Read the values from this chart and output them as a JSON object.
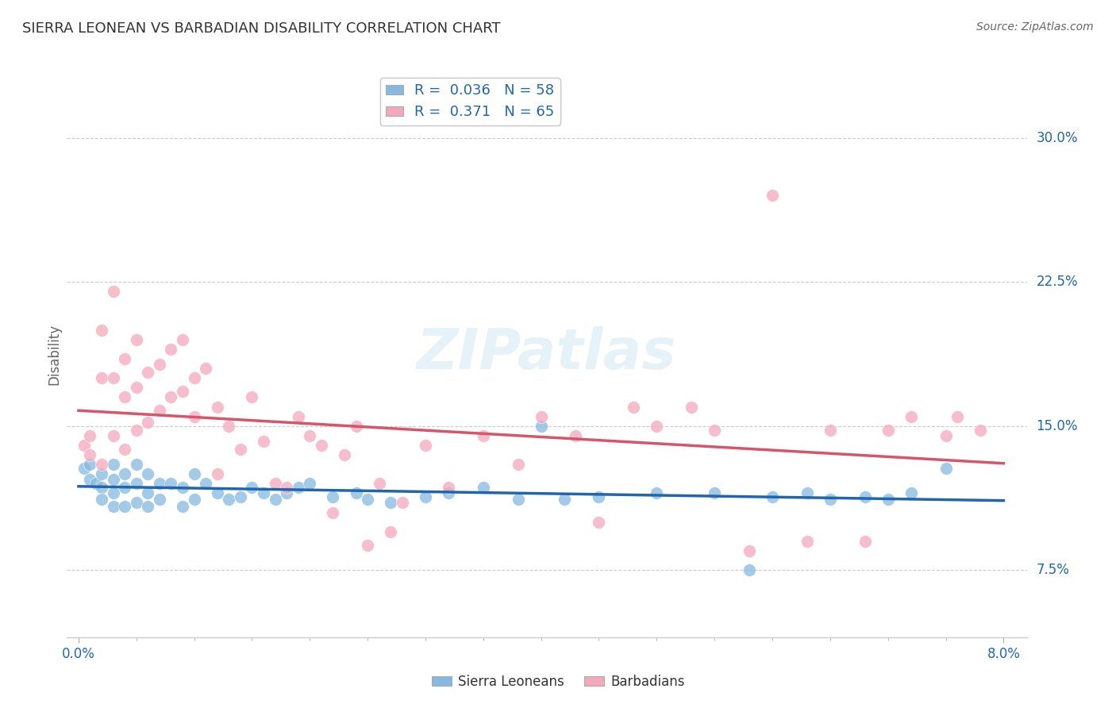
{
  "title": "SIERRA LEONEAN VS BARBADIAN DISABILITY CORRELATION CHART",
  "source": "Source: ZipAtlas.com",
  "ylabel": "Disability",
  "watermark": "ZIPatlas",
  "xlim": [
    0.0,
    0.08
  ],
  "ylim": [
    0.04,
    0.335
  ],
  "y_ticks": [
    0.075,
    0.15,
    0.225,
    0.3
  ],
  "y_tick_labels": [
    "7.5%",
    "15.0%",
    "22.5%",
    "30.0%"
  ],
  "blue_color": "#85b9e0",
  "pink_color": "#f4a8bc",
  "blue_line_color": "#2166ac",
  "pink_line_color": "#d6556a",
  "legend_r1": "R =  0.036",
  "legend_n1": "N = 58",
  "legend_r2": "R =  0.371",
  "legend_n2": "N = 65",
  "sierra_x": [
    0.0005,
    0.001,
    0.001,
    0.0015,
    0.002,
    0.002,
    0.002,
    0.003,
    0.003,
    0.003,
    0.003,
    0.004,
    0.004,
    0.004,
    0.005,
    0.005,
    0.005,
    0.006,
    0.006,
    0.006,
    0.007,
    0.007,
    0.008,
    0.009,
    0.009,
    0.01,
    0.01,
    0.011,
    0.012,
    0.013,
    0.014,
    0.015,
    0.016,
    0.017,
    0.018,
    0.019,
    0.02,
    0.022,
    0.024,
    0.025,
    0.027,
    0.03,
    0.032,
    0.035,
    0.038,
    0.04,
    0.042,
    0.045,
    0.05,
    0.055,
    0.058,
    0.06,
    0.063,
    0.065,
    0.068,
    0.07,
    0.072,
    0.075
  ],
  "sierra_y": [
    0.128,
    0.13,
    0.122,
    0.12,
    0.125,
    0.118,
    0.112,
    0.13,
    0.122,
    0.115,
    0.108,
    0.125,
    0.118,
    0.108,
    0.13,
    0.12,
    0.11,
    0.125,
    0.115,
    0.108,
    0.12,
    0.112,
    0.12,
    0.118,
    0.108,
    0.125,
    0.112,
    0.12,
    0.115,
    0.112,
    0.113,
    0.118,
    0.115,
    0.112,
    0.115,
    0.118,
    0.12,
    0.113,
    0.115,
    0.112,
    0.11,
    0.113,
    0.115,
    0.118,
    0.112,
    0.15,
    0.112,
    0.113,
    0.115,
    0.115,
    0.075,
    0.113,
    0.115,
    0.112,
    0.113,
    0.112,
    0.115,
    0.128
  ],
  "barbadian_x": [
    0.0005,
    0.001,
    0.001,
    0.002,
    0.002,
    0.002,
    0.003,
    0.003,
    0.003,
    0.004,
    0.004,
    0.004,
    0.005,
    0.005,
    0.005,
    0.006,
    0.006,
    0.007,
    0.007,
    0.008,
    0.008,
    0.009,
    0.009,
    0.01,
    0.01,
    0.011,
    0.012,
    0.012,
    0.013,
    0.014,
    0.015,
    0.016,
    0.017,
    0.018,
    0.019,
    0.02,
    0.021,
    0.022,
    0.023,
    0.024,
    0.025,
    0.026,
    0.027,
    0.028,
    0.03,
    0.032,
    0.035,
    0.038,
    0.04,
    0.043,
    0.045,
    0.048,
    0.05,
    0.053,
    0.055,
    0.058,
    0.06,
    0.063,
    0.065,
    0.068,
    0.07,
    0.072,
    0.075,
    0.076,
    0.078
  ],
  "barbadian_y": [
    0.14,
    0.145,
    0.135,
    0.2,
    0.175,
    0.13,
    0.22,
    0.175,
    0.145,
    0.185,
    0.165,
    0.138,
    0.195,
    0.17,
    0.148,
    0.178,
    0.152,
    0.182,
    0.158,
    0.19,
    0.165,
    0.195,
    0.168,
    0.175,
    0.155,
    0.18,
    0.16,
    0.125,
    0.15,
    0.138,
    0.165,
    0.142,
    0.12,
    0.118,
    0.155,
    0.145,
    0.14,
    0.105,
    0.135,
    0.15,
    0.088,
    0.12,
    0.095,
    0.11,
    0.14,
    0.118,
    0.145,
    0.13,
    0.155,
    0.145,
    0.1,
    0.16,
    0.15,
    0.16,
    0.148,
    0.085,
    0.27,
    0.09,
    0.148,
    0.09,
    0.148,
    0.155,
    0.145,
    0.155,
    0.148
  ]
}
